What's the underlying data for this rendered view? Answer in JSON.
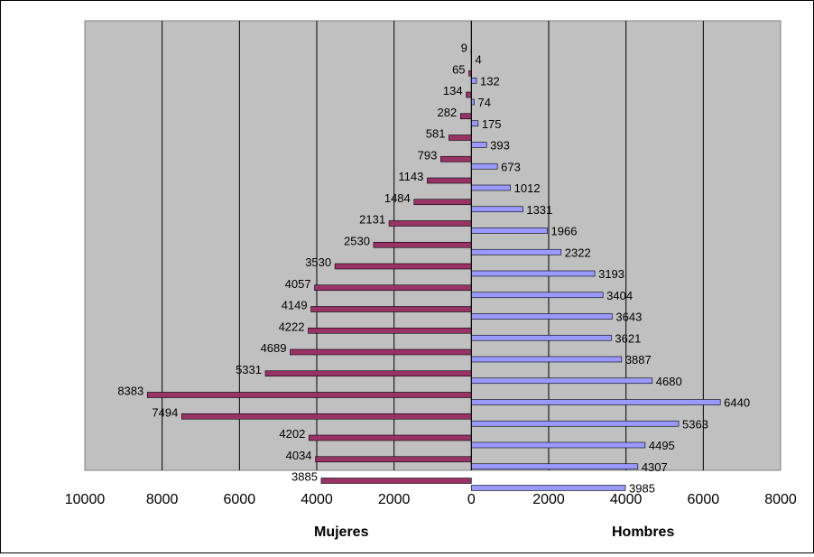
{
  "chart_data": {
    "type": "bar",
    "orientation": "horizontal",
    "layout": "population-pyramid",
    "left_label": "Mujeres",
    "right_label": "Hombres",
    "xlim": [
      -10000,
      8000
    ],
    "xticks": [
      -10000,
      -8000,
      -6000,
      -4000,
      -2000,
      0,
      2000,
      4000,
      6000,
      8000
    ],
    "xtick_labels": [
      "10000",
      "8000",
      "6000",
      "4000",
      "2000",
      "0",
      "2000",
      "4000",
      "6000",
      "8000"
    ],
    "grid": "vertical",
    "series": [
      {
        "name": "Mujeres",
        "color": "#993366",
        "values": [
          9,
          65,
          134,
          282,
          581,
          793,
          1143,
          1484,
          2131,
          2530,
          3530,
          4057,
          4149,
          4222,
          4689,
          5331,
          8383,
          7494,
          4202,
          4034,
          3885
        ]
      },
      {
        "name": "Hombres",
        "color": "#9999FF",
        "values": [
          4,
          132,
          74,
          175,
          393,
          673,
          1012,
          1331,
          1966,
          2322,
          3193,
          3404,
          3643,
          3621,
          3887,
          4680,
          6440,
          5363,
          4495,
          4307,
          3985
        ]
      }
    ],
    "colors": {
      "plot_background": "#C0C0C0",
      "gridline": "#000000"
    }
  }
}
